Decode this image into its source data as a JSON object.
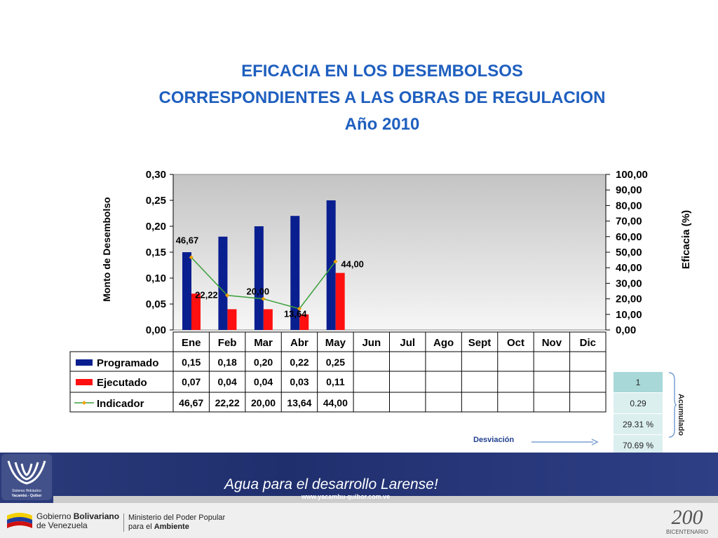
{
  "title": {
    "line1": "EFICACIA EN LOS DESEMBOLSOS",
    "line2": "CORRESPONDIENTES A LAS OBRAS DE REGULACION",
    "line3": "Año 2010"
  },
  "chart_data": {
    "type": "bar",
    "categories": [
      "Ene",
      "Feb",
      "Mar",
      "Abr",
      "May",
      "Jun",
      "Jul",
      "Ago",
      "Sept",
      "Oct",
      "Nov",
      "Dic"
    ],
    "ylabel": "Monto de Desembolso",
    "y2label": "Eficacia (%)",
    "ylim": [
      0,
      0.3
    ],
    "y2lim": [
      0,
      100
    ],
    "y_ticks": [
      "0,00",
      "0,05",
      "0,10",
      "0,15",
      "0,20",
      "0,25",
      "0,30"
    ],
    "y2_ticks": [
      "0,00",
      "10,00",
      "20,00",
      "30,00",
      "40,00",
      "50,00",
      "60,00",
      "70,00",
      "80,00",
      "90,00",
      "100,00"
    ],
    "series": [
      {
        "name": "Programado",
        "type": "bar",
        "color": "#0a1f8f",
        "values": [
          0.15,
          0.18,
          0.2,
          0.22,
          0.25,
          null,
          null,
          null,
          null,
          null,
          null,
          null
        ],
        "labels": [
          "0,15",
          "0,18",
          "0,20",
          "0,22",
          "0,25",
          "",
          "",
          "",
          "",
          "",
          "",
          ""
        ]
      },
      {
        "name": "Ejecutado",
        "type": "bar",
        "color": "#ff1010",
        "values": [
          0.07,
          0.04,
          0.04,
          0.03,
          0.11,
          null,
          null,
          null,
          null,
          null,
          null,
          null
        ],
        "labels": [
          "0,07",
          "0,04",
          "0,04",
          "0,03",
          "0,11",
          "",
          "",
          "",
          "",
          "",
          "",
          ""
        ]
      },
      {
        "name": "Indicador",
        "type": "line",
        "axis": "right",
        "color": "#3aa03a",
        "marker_color": "#f0a000",
        "values": [
          46.67,
          22.22,
          20.0,
          13.64,
          44.0,
          null,
          null,
          null,
          null,
          null,
          null,
          null
        ],
        "labels": [
          "46,67",
          "22,22",
          "20,00",
          "13,64",
          "44,00",
          "",
          "",
          "",
          "",
          "",
          "",
          ""
        ]
      }
    ],
    "grid": false,
    "legend": "data-table"
  },
  "side_table": {
    "rows": [
      "1",
      "0.29",
      "29.31 %",
      "70.69 %"
    ],
    "label": "Acumulado",
    "arrow_label": "Desviación"
  },
  "footer": {
    "slogan": "Agua para el desarrollo Larense!",
    "url": "www.yacambu-quibor.com.ve",
    "gobierno_line1a": "Gobierno ",
    "gobierno_line1b": "Bolivariano",
    "gobierno_line2": "de Venezuela",
    "ministerio_line1": "Ministerio del Poder Popular",
    "ministerio_line2a": "para el ",
    "ministerio_line2b": "Ambiente",
    "logo_text1": "Sistema Hidráulico",
    "logo_text2": "Yacambú - Quíbor",
    "bicentenario": "BICENTENARIO",
    "bicentenario_num": "200"
  },
  "colors": {
    "title": "#1f5fbf",
    "plot_bg_top": "#c8c8c8",
    "plot_bg_bottom": "#f4f4f4",
    "programado": "#0a1f8f",
    "ejecutado": "#ff1010",
    "indicador_line": "#3aa03a",
    "indicador_marker": "#f0a000"
  }
}
